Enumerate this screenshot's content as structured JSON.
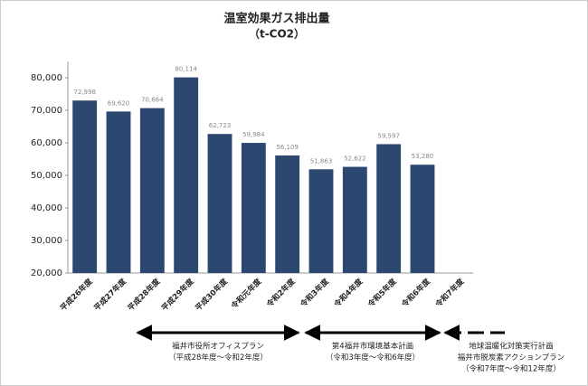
{
  "chart_data": {
    "type": "bar",
    "title": "温室効果ガス排出量",
    "subtitle": "（t-CO2）",
    "categories": [
      "平成26年度",
      "平成27年度",
      "平成28年度",
      "平成29年度",
      "平成30年度",
      "令和元年度",
      "令和2年度",
      "令和3年度",
      "令和4年度",
      "令和5年度",
      "令和6年度",
      "令和7年度"
    ],
    "values": [
      72998,
      69620,
      70664,
      80114,
      62723,
      59984,
      56109,
      51863,
      52622,
      59597,
      53280,
      null
    ],
    "value_labels": [
      "72,998",
      "69,620",
      "70,664",
      "80,114",
      "62,723",
      "59,984",
      "56,109",
      "51,863",
      "52,622",
      "59,597",
      "53,280",
      null
    ],
    "color": "#2c4770",
    "ylim": [
      20000,
      85000
    ],
    "yticks": [
      {
        "value": 20000,
        "label": "20,000"
      },
      {
        "value": 30000,
        "label": "30,000"
      },
      {
        "value": 40000,
        "label": "40,000"
      },
      {
        "value": 50000,
        "label": "50,000"
      },
      {
        "value": 60000,
        "label": "60,000"
      },
      {
        "value": 70000,
        "label": "70,000"
      },
      {
        "value": 80000,
        "label": "80,000"
      }
    ],
    "grid": false,
    "annotations": [
      {
        "lines": [
          "福井市役所オフィスプラン",
          "（平成28年度～令和2年度）"
        ]
      },
      {
        "lines": [
          "第4福井市環境基本計画",
          "（令和3年度～令和6年度）"
        ]
      },
      {
        "lines": [
          "地球温暖化対策実行計画",
          "福井市脱炭素アクションプラン",
          "（令和7年度～令和12年度）"
        ]
      }
    ]
  }
}
